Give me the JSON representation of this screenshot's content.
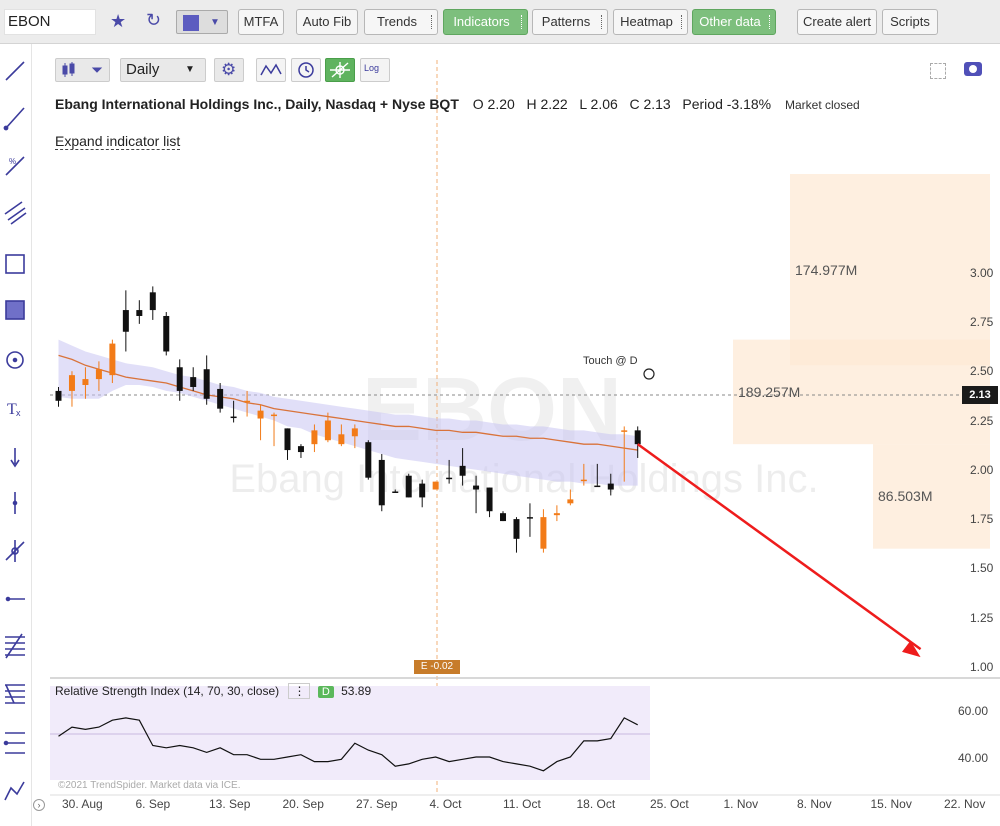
{
  "toolbar": {
    "symbol": "EBON",
    "buttons": [
      {
        "label": "MTFA"
      },
      {
        "label": "Auto Fib"
      },
      {
        "label": "Trends"
      },
      {
        "label": "Indicators"
      },
      {
        "label": "Patterns"
      },
      {
        "label": "Heatmap"
      },
      {
        "label": "Other data"
      },
      {
        "label": "Create alert"
      },
      {
        "label": "Scripts"
      }
    ]
  },
  "chart_toolbar": {
    "timeframe": "Daily",
    "log_label": "Log"
  },
  "header": {
    "name": "Ebang International Holdings Inc., Daily, Nasdaq + Nyse BQT",
    "open": "O 2.20",
    "high": "H 2.22",
    "low": "L 2.06",
    "close": "C 2.13",
    "period_label": "Period",
    "period_value": "-3.18%",
    "market_status": "Market closed"
  },
  "expand_indicator_list": "Expand indicator list",
  "watermark": {
    "ticker": "EBON",
    "company": "Ebang International Holdings Inc."
  },
  "annotations": {
    "touch_label": "Touch @ D",
    "earnings_badge": "E -0.02",
    "current_price": "2.13"
  },
  "volume_profile": [
    {
      "label": "174.977M",
      "price_low": 2.53,
      "price_high": 3.5
    },
    {
      "label": "189.257M",
      "price_low": 2.13,
      "price_high": 2.66
    },
    {
      "label": "86.503M",
      "price_low": 1.6,
      "price_high": 2.13
    }
  ],
  "price_axis_labels": [
    "3.00",
    "2.75",
    "2.50",
    "2.25",
    "2.00",
    "1.75",
    "1.50",
    "1.25",
    "1.00"
  ],
  "date_axis_labels": [
    "30. Aug",
    "6. Sep",
    "13. Sep",
    "20. Sep",
    "27. Sep",
    "4. Oct",
    "11. Oct",
    "18. Oct",
    "25. Oct",
    "1. Nov",
    "8. Nov",
    "15. Nov",
    "22. Nov"
  ],
  "rsi": {
    "legend": "Relative Strength Index (14, 70, 30, close)",
    "timeframe_badge": "D",
    "value": "53.89",
    "axis_labels": [
      "60.00",
      "40.00"
    ],
    "values": [
      49,
      53,
      52,
      53,
      56,
      57,
      56,
      45,
      44,
      45,
      44,
      42,
      44,
      41,
      41,
      39,
      39,
      40,
      41,
      38,
      38,
      39,
      46,
      43,
      41,
      36,
      37,
      39,
      40,
      38,
      39,
      40,
      40,
      38,
      37,
      36,
      34,
      38,
      40,
      47,
      47,
      48,
      57,
      54
    ]
  },
  "copyright": "©2021 TrendSpider. Market data via ICE.",
  "chart_data": {
    "type": "candlestick",
    "x_unit": "trading day index from 27 Aug 2021",
    "y_unit": "USD",
    "ylim": [
      0.96,
      3.6
    ],
    "candles": [
      [
        2.35,
        2.42,
        2.32,
        2.4,
        "down"
      ],
      [
        2.4,
        2.5,
        2.32,
        2.48,
        "up"
      ],
      [
        2.43,
        2.52,
        2.36,
        2.46,
        "up"
      ],
      [
        2.46,
        2.55,
        2.4,
        2.51,
        "up"
      ],
      [
        2.48,
        2.66,
        2.44,
        2.64,
        "up"
      ],
      [
        2.7,
        2.91,
        2.6,
        2.81,
        "down"
      ],
      [
        2.81,
        2.86,
        2.74,
        2.78,
        "down"
      ],
      [
        2.9,
        2.93,
        2.76,
        2.81,
        "down"
      ],
      [
        2.78,
        2.8,
        2.58,
        2.6,
        "down"
      ],
      [
        2.52,
        2.56,
        2.35,
        2.4,
        "down"
      ],
      [
        2.47,
        2.52,
        2.4,
        2.42,
        "down"
      ],
      [
        2.51,
        2.58,
        2.33,
        2.36,
        "down"
      ],
      [
        2.41,
        2.44,
        2.29,
        2.31,
        "down"
      ],
      [
        2.27,
        2.35,
        2.24,
        2.27,
        "down"
      ],
      [
        2.35,
        2.4,
        2.27,
        2.35,
        "up"
      ],
      [
        2.26,
        2.33,
        2.15,
        2.3,
        "up"
      ],
      [
        2.28,
        2.29,
        2.12,
        2.28,
        "up"
      ],
      [
        2.21,
        2.21,
        2.05,
        2.1,
        "down"
      ],
      [
        2.12,
        2.13,
        2.06,
        2.09,
        "down"
      ],
      [
        2.13,
        2.23,
        2.09,
        2.2,
        "up"
      ],
      [
        2.15,
        2.29,
        2.14,
        2.25,
        "up"
      ],
      [
        2.13,
        2.23,
        2.12,
        2.18,
        "up"
      ],
      [
        2.21,
        2.23,
        2.11,
        2.17,
        "up"
      ],
      [
        2.14,
        2.15,
        1.95,
        1.96,
        "down"
      ],
      [
        2.05,
        2.08,
        1.79,
        1.82,
        "down"
      ],
      [
        1.89,
        1.9,
        1.89,
        1.89,
        "down"
      ],
      [
        1.97,
        1.98,
        1.86,
        1.86,
        "down"
      ],
      [
        1.93,
        1.95,
        1.81,
        1.86,
        "down"
      ],
      [
        1.9,
        1.94,
        1.9,
        1.94,
        "up"
      ],
      [
        1.96,
        2.05,
        1.93,
        1.96,
        "down"
      ],
      [
        1.97,
        2.11,
        1.92,
        2.02,
        "down"
      ],
      [
        1.92,
        1.97,
        1.78,
        1.9,
        "down"
      ],
      [
        1.91,
        1.91,
        1.76,
        1.79,
        "down"
      ],
      [
        1.78,
        1.79,
        1.74,
        1.74,
        "down"
      ],
      [
        1.75,
        1.76,
        1.58,
        1.65,
        "down"
      ],
      [
        1.76,
        1.83,
        1.66,
        1.76,
        "down"
      ],
      [
        1.76,
        1.8,
        1.58,
        1.6,
        "up"
      ],
      [
        1.78,
        1.82,
        1.74,
        1.77,
        "up"
      ],
      [
        1.85,
        1.9,
        1.82,
        1.83,
        "up"
      ],
      [
        1.95,
        2.03,
        1.92,
        1.95,
        "up"
      ],
      [
        1.92,
        2.03,
        1.92,
        1.92,
        "down"
      ],
      [
        1.9,
        1.98,
        1.87,
        1.93,
        "down"
      ],
      [
        2.2,
        2.22,
        1.94,
        2.2,
        "up"
      ],
      [
        2.2,
        2.22,
        2.06,
        2.13,
        "down"
      ]
    ],
    "moving_average": [
      2.58,
      2.56,
      2.53,
      2.51,
      2.49,
      2.47,
      2.46,
      2.45,
      2.44,
      2.42,
      2.4,
      2.38,
      2.37,
      2.36,
      2.34,
      2.33,
      2.31,
      2.3,
      2.29,
      2.28,
      2.27,
      2.26,
      2.25,
      2.24,
      2.23,
      2.22,
      2.22,
      2.21,
      2.2,
      2.2,
      2.19,
      2.19,
      2.18,
      2.17,
      2.17,
      2.16,
      2.16,
      2.15,
      2.14,
      2.13,
      2.13,
      2.12,
      2.11,
      2.1
    ],
    "band_upper": [
      2.66,
      2.63,
      2.6,
      2.58,
      2.56,
      2.54,
      2.53,
      2.52,
      2.5,
      2.48,
      2.47,
      2.45,
      2.43,
      2.42,
      2.4,
      2.39,
      2.37,
      2.36,
      2.35,
      2.34,
      2.33,
      2.32,
      2.31,
      2.3,
      2.29,
      2.28,
      2.28,
      2.27,
      2.26,
      2.26,
      2.25,
      2.25,
      2.24,
      2.23,
      2.23,
      2.22,
      2.22,
      2.21,
      2.2,
      2.2,
      2.19,
      2.18,
      2.18,
      2.17
    ],
    "band_lower": [
      2.37,
      2.36,
      2.36,
      2.36,
      2.4,
      2.43,
      2.43,
      2.42,
      2.4,
      2.39,
      2.37,
      2.35,
      2.33,
      2.31,
      2.29,
      2.27,
      2.25,
      2.22,
      2.21,
      2.18,
      2.16,
      2.14,
      2.12,
      2.1,
      2.08,
      2.06,
      2.05,
      2.04,
      2.03,
      2.02,
      2.01,
      2.0,
      1.99,
      1.98,
      1.97,
      1.96,
      1.95,
      1.94,
      1.94,
      1.93,
      1.93,
      1.92,
      1.92,
      1.92
    ],
    "projection_arrow": {
      "from_index": 43,
      "from_price": 2.13,
      "to_index": 64,
      "to_price": 1.05
    }
  }
}
